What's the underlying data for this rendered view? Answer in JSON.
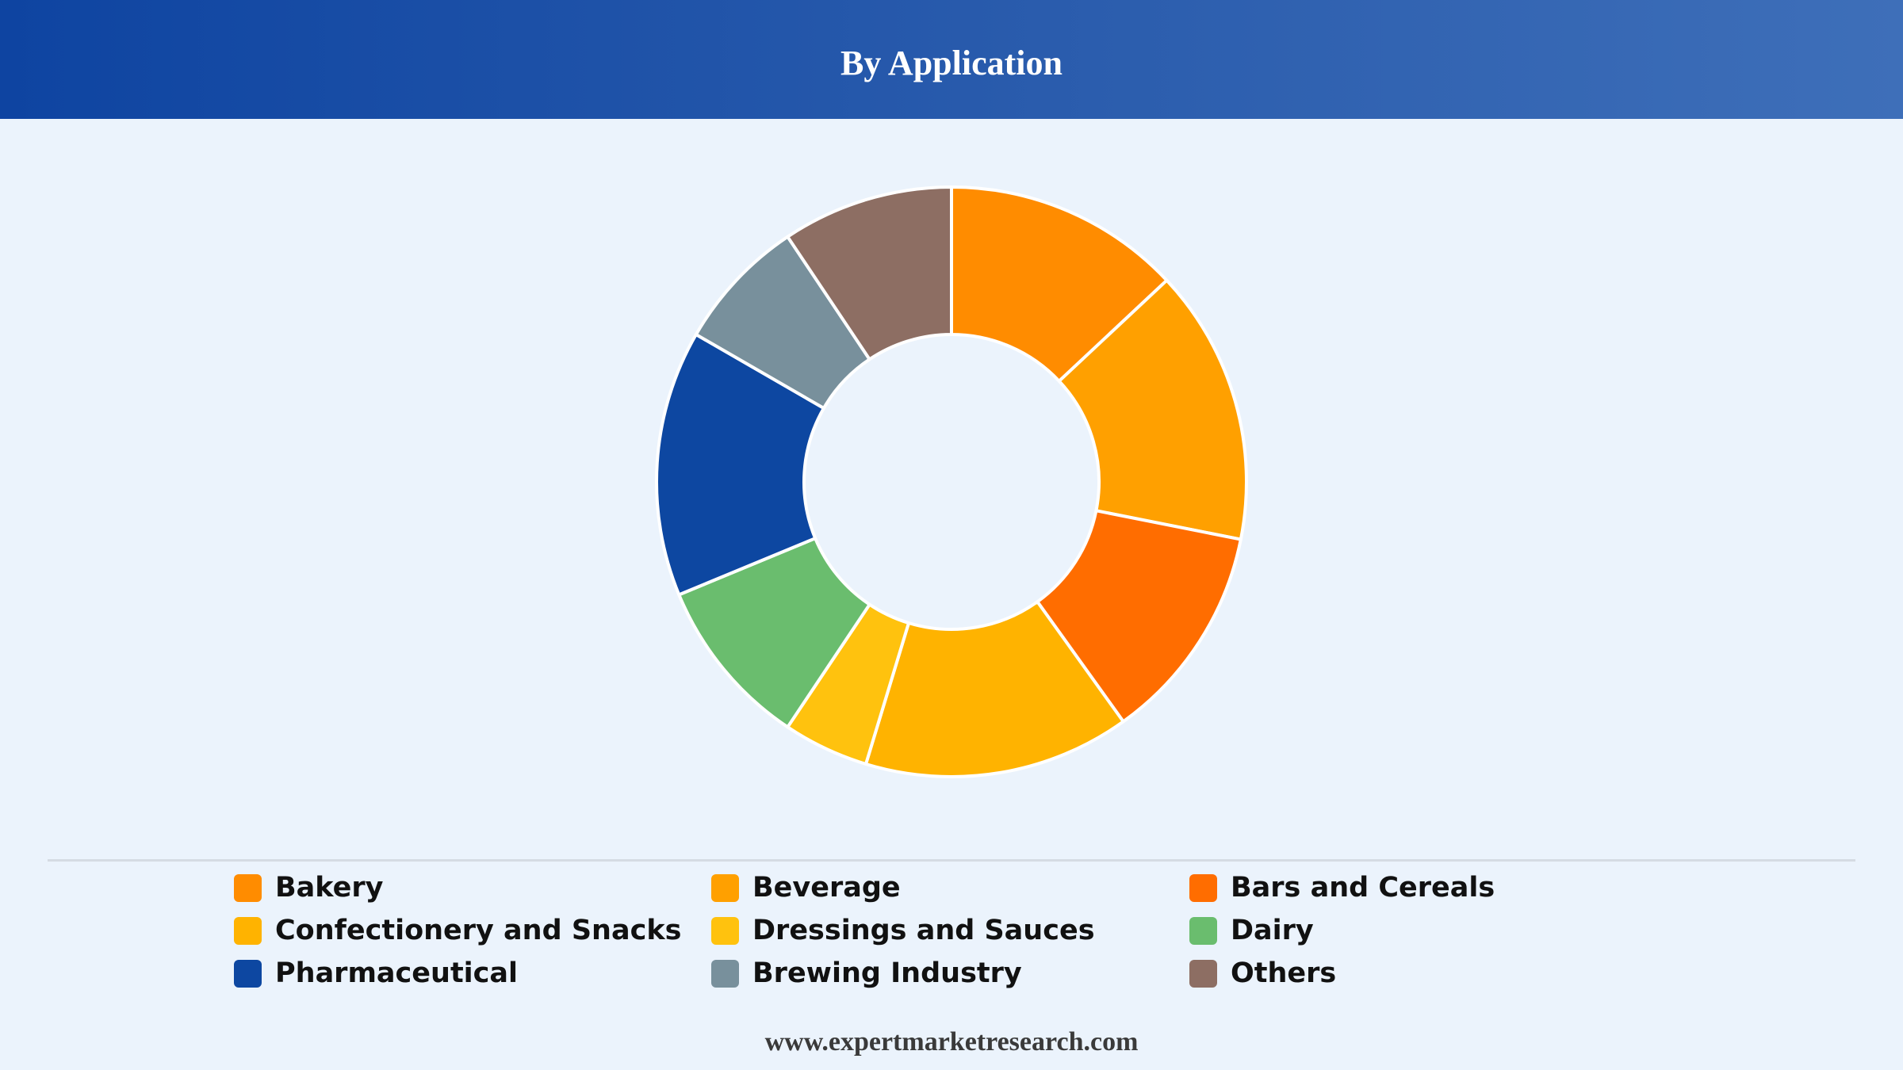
{
  "header": {
    "title": "By Application"
  },
  "chart_data": {
    "type": "pie",
    "title": "By Application",
    "donut": true,
    "legend_position": "bottom",
    "categories": [
      "Bakery",
      "Beverage",
      "Bars and Cereals",
      "Confectionery and Snacks",
      "Dressings and Sauces",
      "Dairy",
      "Pharmaceutical",
      "Brewing Industry",
      "Others"
    ],
    "values": [
      12.5,
      14.5,
      11.5,
      14.0,
      4.5,
      9.0,
      14.0,
      7.0,
      9.0
    ],
    "colors": [
      "#ff8c00",
      "#ffa000",
      "#ff6d00",
      "#ffb300",
      "#ffc20e",
      "#6abd6e",
      "#0d47a1",
      "#78909c",
      "#8d6e63"
    ]
  },
  "legend": {
    "items": [
      {
        "label": "Bakery",
        "color": "#ff8c00"
      },
      {
        "label": "Beverage",
        "color": "#ffa000"
      },
      {
        "label": "Bars and Cereals",
        "color": "#ff6d00"
      },
      {
        "label": "Confectionery and Snacks",
        "color": "#ffb300"
      },
      {
        "label": "Dressings and Sauces",
        "color": "#ffc20e"
      },
      {
        "label": "Dairy",
        "color": "#6abd6e"
      },
      {
        "label": "Pharmaceutical",
        "color": "#0d47a1"
      },
      {
        "label": "Brewing Industry",
        "color": "#78909c"
      },
      {
        "label": "Others",
        "color": "#8d6e63"
      }
    ]
  },
  "footer": {
    "text": "www.expertmarketresearch.com"
  }
}
